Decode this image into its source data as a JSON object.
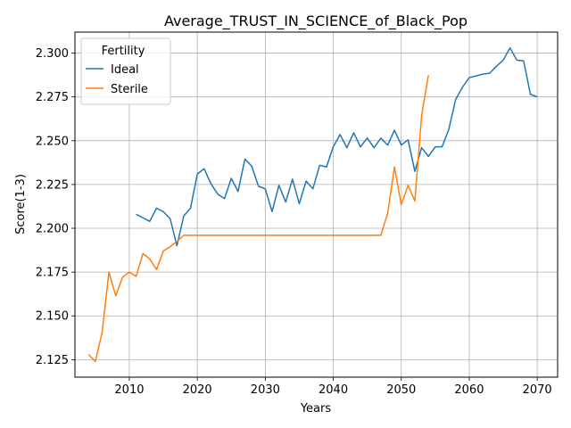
{
  "chart_data": {
    "type": "line",
    "title": "Average_TRUST_IN_SCIENCE_of_Black_Pop",
    "xlabel": "Years",
    "ylabel": "Score(1-3)",
    "xlim": [
      2002,
      2073
    ],
    "ylim": [
      2.115,
      2.312
    ],
    "xticks": [
      2010,
      2020,
      2030,
      2040,
      2050,
      2060,
      2070
    ],
    "yticks": [
      2.125,
      2.15,
      2.175,
      2.2,
      2.225,
      2.25,
      2.275,
      2.3
    ],
    "ytick_labels": [
      "2.125",
      "2.150",
      "2.175",
      "2.200",
      "2.225",
      "2.250",
      "2.275",
      "2.300"
    ],
    "grid": true,
    "legend": {
      "title": "Fertility",
      "position": "top-left"
    },
    "series": [
      {
        "name": "Ideal",
        "color": "#1f77b4",
        "x": [
          2011,
          2012,
          2013,
          2014,
          2015,
          2016,
          2017,
          2018,
          2019,
          2020,
          2021,
          2022,
          2023,
          2024,
          2025,
          2026,
          2027,
          2028,
          2029,
          2030,
          2031,
          2032,
          2033,
          2034,
          2035,
          2036,
          2037,
          2038,
          2039,
          2040,
          2041,
          2042,
          2043,
          2044,
          2045,
          2046,
          2047,
          2048,
          2049,
          2050,
          2051,
          2052,
          2053,
          2054,
          2055,
          2056,
          2057,
          2058,
          2059,
          2060,
          2061,
          2062,
          2063,
          2064,
          2065,
          2066,
          2067,
          2068,
          2069,
          2070
        ],
        "values": [
          2.208,
          2.206,
          2.204,
          2.2115,
          2.2095,
          2.2055,
          2.19,
          2.207,
          2.2115,
          2.231,
          2.234,
          2.2255,
          2.2195,
          2.217,
          2.2285,
          2.221,
          2.2395,
          2.2355,
          2.224,
          2.2225,
          2.2095,
          2.2245,
          2.215,
          2.228,
          2.214,
          2.227,
          2.2225,
          2.236,
          2.235,
          2.2465,
          2.2535,
          2.246,
          2.2545,
          2.2465,
          2.2515,
          2.246,
          2.2515,
          2.2475,
          2.256,
          2.2475,
          2.2505,
          2.2325,
          2.246,
          2.241,
          2.2465,
          2.2465,
          2.2565,
          2.2735,
          2.2805,
          2.286,
          2.287,
          2.288,
          2.2885,
          2.2925,
          2.296,
          2.303,
          2.296,
          2.2955,
          2.2765,
          2.275
        ]
      },
      {
        "name": "Sterile",
        "color": "#ff7f0e",
        "x": [
          2004,
          2005,
          2006,
          2007,
          2008,
          2009,
          2010,
          2011,
          2012,
          2013,
          2014,
          2015,
          2016,
          2017,
          2018,
          2019,
          2020,
          2021,
          2022,
          2023,
          2024,
          2025,
          2026,
          2027,
          2028,
          2029,
          2030,
          2031,
          2032,
          2033,
          2034,
          2035,
          2036,
          2037,
          2038,
          2039,
          2040,
          2041,
          2042,
          2043,
          2044,
          2045,
          2046,
          2047,
          2048,
          2049,
          2050,
          2051,
          2052,
          2053,
          2054
        ],
        "values": [
          2.128,
          2.124,
          2.1405,
          2.175,
          2.1615,
          2.172,
          2.175,
          2.1725,
          2.1855,
          2.1825,
          2.1765,
          2.187,
          2.1895,
          2.1925,
          2.196,
          2.196,
          2.196,
          2.196,
          2.196,
          2.196,
          2.196,
          2.196,
          2.196,
          2.196,
          2.196,
          2.196,
          2.196,
          2.196,
          2.196,
          2.196,
          2.196,
          2.196,
          2.196,
          2.196,
          2.196,
          2.196,
          2.196,
          2.196,
          2.196,
          2.196,
          2.196,
          2.196,
          2.196,
          2.196,
          2.2085,
          2.235,
          2.2135,
          2.2245,
          2.2155,
          2.2645,
          2.2875
        ]
      }
    ]
  }
}
